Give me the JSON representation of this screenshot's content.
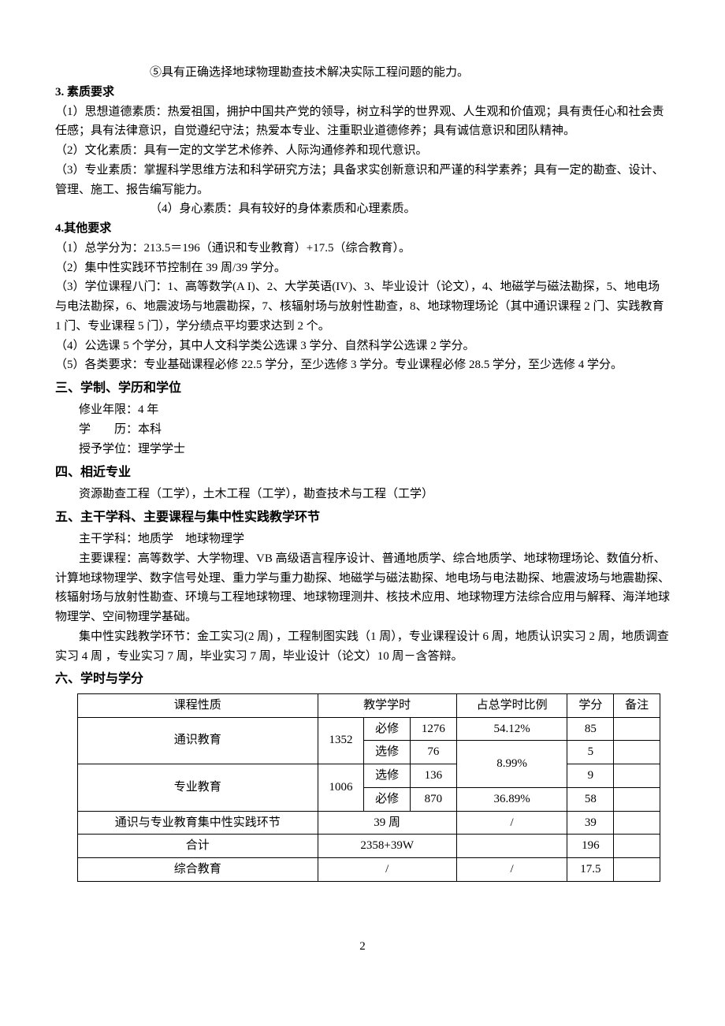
{
  "line_top": "⑤具有正确选择地球物理勘查技术解决实际工程问题的能力。",
  "sec3_title": "3. 素质要求",
  "sec3_p1": "（1）思想道德素质：热爱祖国，拥护中国共产党的领导，树立科学的世界观、人生观和价值观；具有责任心和社会责任感；具有法律意识，自觉遵纪守法；热爱本专业、注重职业道德修养；具有诚信意识和团队精神。",
  "sec3_p2": "（2）文化素质：具有一定的文学艺术修养、人际沟通修养和现代意识。",
  "sec3_p3": "（3）专业素质：掌握科学思维方法和科学研究方法；具备求实创新意识和严谨的科学素养；具有一定的勘查、设计、管理、施工、报告编写能力。",
  "sec3_p4": "（4）身心素质：具有较好的身体素质和心理素质。",
  "sec4_title": "4.其他要求",
  "sec4_p1": "（1）总学分为：213.5＝196（通识和专业教育）+17.5（综合教育）。",
  "sec4_p2": "（2）集中性实践环节控制在 39 周/39 学分。",
  "sec4_p3": "（3）学位课程八门：1、高等数学(A I)、2、大学英语(IV)、3、毕业设计（论文），4、地磁学与磁法勘探，5、地电场与电法勘探，6、地震波场与地震勘探，7、核辐射场与放射性勘查，8、地球物理场论（其中通识课程 2 门、实践教育 1 门、专业课程 5 门），学分绩点平均要求达到 2 个。",
  "sec4_p4": "（4）公选课 5 个学分，其中人文科学类公选课 3 学分、自然科学公选课 2 学分。",
  "sec4_p5": "（5）各类要求：专业基础课程必修 22.5 学分，至少选修 3 学分。专业课程必修 28.5 学分，至少选修 4 学分。",
  "h3_title": "三、学制、学历和学位",
  "h3_l1": "修业年限：4 年",
  "h3_l2": "学　　历：本科",
  "h3_l3": "授予学位：理学学士",
  "h4_title": "四、相近专业",
  "h4_p1": "资源勘查工程（工学），土木工程（工学），勘查技术与工程（工学）",
  "h5_title": "五、主干学科、主要课程与集中性实践教学环节",
  "h5_p1": "主干学科：地质学　地球物理学",
  "h5_p2": "主要课程：高等数学、大学物理、VB 高级语言程序设计、普通地质学、综合地质学、地球物理场论、数值分析、计算地球物理学、数字信号处理、重力学与重力勘探、地磁学与磁法勘探、地电场与电法勘探、地震波场与地震勘探、核辐射场与放射性勘查、环境与工程地球物理、地球物理测井、核技术应用、地球物理方法综合应用与解释、海洋地球物理学、空间物理学基础。",
  "h5_p3": "集中性实践教学环节：金工实习(2 周) ，工程制图实践（1 周），专业课程设计 6 周，地质认识实习 2 周，地质调查实习 4 周 ，专业实习 7 周，毕业实习 7 周，毕业设计（论文）10 周－含答辩。",
  "h6_title": "六、学时与学分",
  "table": {
    "header": [
      "课程性质",
      "教学学时",
      "占总学时比例",
      "学分",
      "备注"
    ],
    "r1": {
      "name": "通识教育",
      "c1": "1352",
      "c2": "必修",
      "c3": "1276",
      "pct": "54.12%",
      "credit": "85"
    },
    "r2": {
      "c2": "选修",
      "c3": "76",
      "pct": "8.99%",
      "credit": "5"
    },
    "r3": {
      "name": "专业教育",
      "c1": "1006",
      "c2": "选修",
      "c3": "136",
      "credit": "9"
    },
    "r4": {
      "c2": "必修",
      "c3": "870",
      "pct": "36.89%",
      "credit": "58"
    },
    "r5": {
      "name": "通识与专业教育集中性实践环节",
      "hours": "39 周",
      "pct": "/",
      "credit": "39"
    },
    "r6": {
      "name": "合计",
      "hours": "2358+39W",
      "pct": "",
      "credit": "196"
    },
    "r7": {
      "name": "综合教育",
      "hours": "/",
      "pct": "/",
      "credit": "17.5"
    }
  },
  "page_number": "2"
}
